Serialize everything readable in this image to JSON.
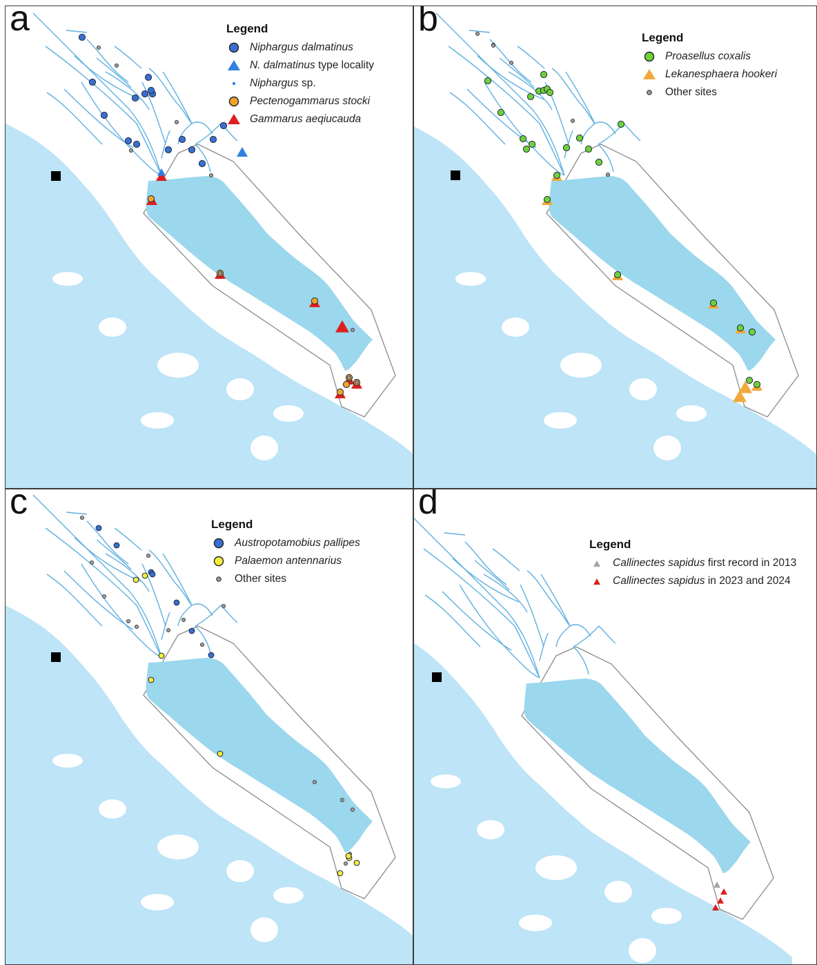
{
  "colors": {
    "sea": "#bde4f7",
    "lake": "#9bd7ed",
    "river": "#5fb0e0",
    "boundary": "#8a8a8a",
    "other_sites": "#9e9e9e",
    "niphargus_dalmatinus": "#3a6fd1",
    "type_locality": "#2f7fe0",
    "pectenogammarus": "#f0a32a",
    "gammarus": "#dd1f1f",
    "proasellus": "#6fd13a",
    "lekanesphaera": "#f2a93a",
    "austropotamobius": "#3a6fd1",
    "palaemon": "#f4ee3a",
    "callinectes_2013": "#a6a6a6",
    "callinectes_2023": "#dd1f1f"
  },
  "panels": [
    {
      "letter": "a",
      "legend": {
        "title": "Legend",
        "entries": [
          {
            "text_italic": "Niphargus dalmatinus",
            "text_plain": "",
            "symbol": "circle",
            "color": "#3a6fd1"
          },
          {
            "text_italic": "N. dalmatinus",
            "text_plain": " type locality",
            "symbol": "triangle",
            "color": "#2f7fe0"
          },
          {
            "text_italic": "Niphargus",
            "text_plain": " sp.",
            "symbol": "dot",
            "color": "#2f7fe0"
          },
          {
            "text_italic": "Pectenogammarus stocki",
            "text_plain": "",
            "symbol": "circle",
            "color": "#f0a32a"
          },
          {
            "text_italic": "Gammarus aeqiucauda",
            "text_plain": "",
            "symbol": "triangle",
            "color": "#dd1f1f"
          }
        ]
      }
    },
    {
      "letter": "b",
      "legend": {
        "title": "Legend",
        "entries": [
          {
            "text_italic": "Proasellus coxalis",
            "text_plain": "",
            "symbol": "circle",
            "color": "#6fd13a"
          },
          {
            "text_italic": "Lekanesphaera hookeri",
            "text_plain": "",
            "symbol": "triangle",
            "color": "#f2a93a"
          },
          {
            "text_italic": "",
            "text_plain": "Other sites",
            "symbol": "small-circle",
            "color": "#9e9e9e"
          }
        ]
      }
    },
    {
      "letter": "c",
      "legend": {
        "title": "Legend",
        "entries": [
          {
            "text_italic": "Austropotamobius pallipes",
            "text_plain": "",
            "symbol": "circle",
            "color": "#3a6fd1"
          },
          {
            "text_italic": "Palaemon antennarius",
            "text_plain": "",
            "symbol": "circle",
            "color": "#f4ee3a"
          },
          {
            "text_italic": "",
            "text_plain": "Other sites",
            "symbol": "small-circle",
            "color": "#9e9e9e"
          }
        ]
      }
    },
    {
      "letter": "d",
      "legend": {
        "title": "Legend",
        "entries": [
          {
            "text_italic": "Callinectes sapidus",
            "text_plain": " first record in 2013",
            "symbol": "small-triangle",
            "color": "#a6a6a6"
          },
          {
            "text_italic": "Callinectes sapidus",
            "text_plain": " in 2023 and 2024",
            "symbol": "small-triangle",
            "color": "#dd1f1f"
          }
        ]
      }
    }
  ]
}
